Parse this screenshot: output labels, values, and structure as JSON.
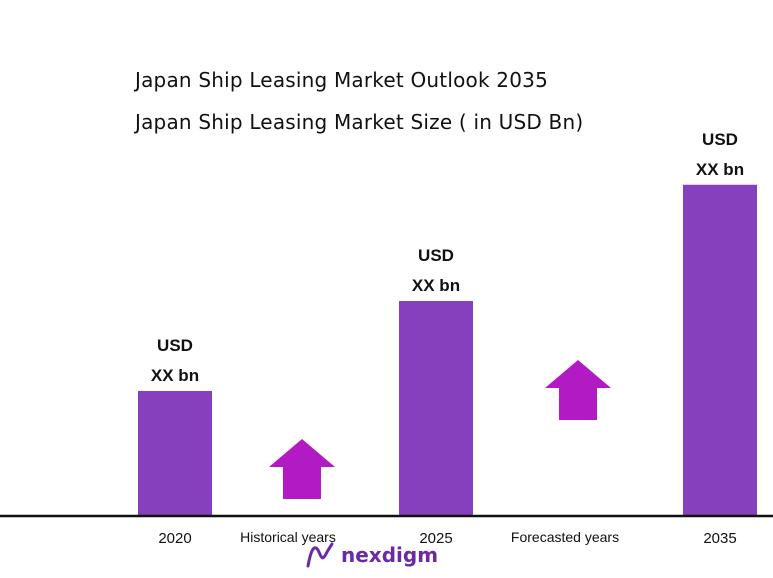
{
  "chart_data": {
    "type": "bar",
    "title": "Japan Ship Leasing Market Outlook 2035",
    "subtitle": "Japan Ship Leasing Market Size ( in USD Bn)",
    "categories": [
      "2020",
      "2025",
      "2035"
    ],
    "values": [
      1.0,
      1.72,
      2.65
    ],
    "data_labels": [
      [
        "USD",
        "XX bn"
      ],
      [
        "USD",
        "XX bn"
      ],
      [
        "USD",
        "XX bn"
      ]
    ],
    "period_labels": [
      "Historical years",
      "Forecasted years"
    ],
    "bar_color": "#8640be",
    "arrow_color": "#b21bc4",
    "axis_color": "#111111",
    "grid": false,
    "legend": "none"
  },
  "brand": {
    "name": "nexdigm",
    "color": "#6a2aa8"
  }
}
